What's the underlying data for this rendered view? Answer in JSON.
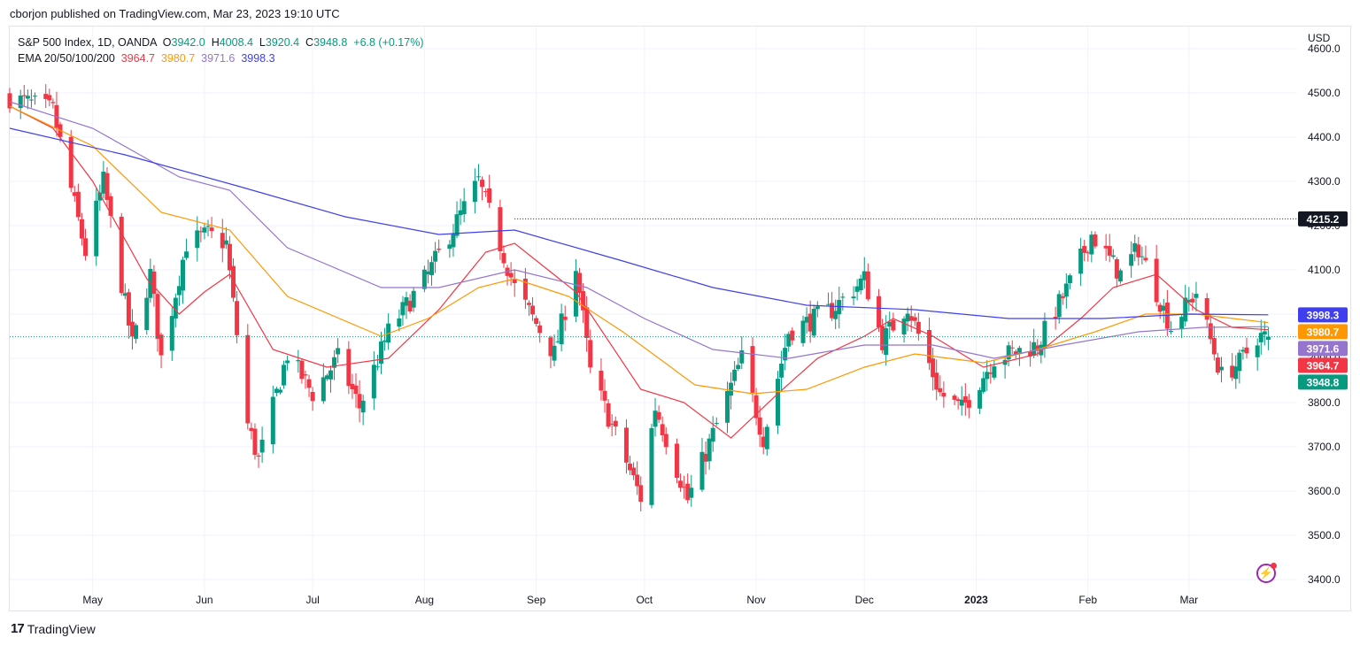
{
  "publish_line": "cborjon published on TradingView.com, Mar 23, 2023 19:10 UTC",
  "legend": {
    "symbol": "S&P 500 Index, 1D, OANDA",
    "o_label": "O",
    "o": "3942.0",
    "h_label": "H",
    "h": "4008.4",
    "l_label": "L",
    "l": "3920.4",
    "c_label": "C",
    "c": "3948.8",
    "change": "+6.8 (+0.17%)",
    "ema_label": "EMA 20/50/100/200",
    "ema20": "3964.7",
    "ema50": "3980.7",
    "ema100": "3971.6",
    "ema200": "3998.3"
  },
  "footer": {
    "brand": "TradingView",
    "logo": "17"
  },
  "colors": {
    "up": "#089981",
    "down": "#f23645",
    "ema20": "#f23645",
    "ema50": "#ff9800",
    "ema100": "#9575cd",
    "ema200": "#3f3fef",
    "grid": "#f0f3fa"
  },
  "chart_data": {
    "type": "candlestick",
    "title": "S&P 500 Index, 1D, OANDA",
    "currency": "USD",
    "ylim": [
      3350,
      4650
    ],
    "y_ticks": [
      3400,
      3500,
      3600,
      3700,
      3800,
      3900,
      4000,
      4100,
      4200,
      4300,
      4400,
      4500,
      4600
    ],
    "y_tick_labels": [
      "3400.0",
      "3500.0",
      "3600.0",
      "3700.0",
      "3800.0",
      "3900.0",
      "4000.0",
      "4100.0",
      "4200.0",
      "4300.0",
      "4400.0",
      "4500.0",
      "4600.0"
    ],
    "x_labels": [
      {
        "text": "May",
        "date": "2022-05-01"
      },
      {
        "text": "Jun",
        "date": "2022-06-01"
      },
      {
        "text": "Jul",
        "date": "2022-07-01"
      },
      {
        "text": "Aug",
        "date": "2022-08-01"
      },
      {
        "text": "Sep",
        "date": "2022-09-01"
      },
      {
        "text": "Oct",
        "date": "2022-10-01"
      },
      {
        "text": "Nov",
        "date": "2022-11-01"
      },
      {
        "text": "Dec",
        "date": "2022-12-01"
      },
      {
        "text": "2023",
        "date": "2023-01-01",
        "bold": true
      },
      {
        "text": "Feb",
        "date": "2023-02-01"
      },
      {
        "text": "Mar",
        "date": "2023-03-01"
      }
    ],
    "x_range": [
      "2022-04-08",
      "2023-03-31"
    ],
    "price_path": [
      [
        "2022-04-08",
        4490
      ],
      [
        "2022-04-20",
        4460
      ],
      [
        "2022-04-29",
        4140
      ],
      [
        "2022-05-04",
        4300
      ],
      [
        "2022-05-12",
        3930
      ],
      [
        "2022-05-17",
        4090
      ],
      [
        "2022-05-20",
        3900
      ],
      [
        "2022-05-27",
        4160
      ],
      [
        "2022-06-02",
        4180
      ],
      [
        "2022-06-07",
        4160
      ],
      [
        "2022-06-13",
        3750
      ],
      [
        "2022-06-16",
        3670
      ],
      [
        "2022-06-24",
        3910
      ],
      [
        "2022-07-01",
        3820
      ],
      [
        "2022-07-08",
        3900
      ],
      [
        "2022-07-14",
        3790
      ],
      [
        "2022-07-22",
        3960
      ],
      [
        "2022-08-02",
        4090
      ],
      [
        "2022-08-16",
        4300
      ],
      [
        "2022-08-19",
        4230
      ],
      [
        "2022-08-26",
        4060
      ],
      [
        "2022-09-06",
        3910
      ],
      [
        "2022-09-12",
        4110
      ],
      [
        "2022-09-16",
        3870
      ],
      [
        "2022-09-30",
        3585
      ],
      [
        "2022-10-04",
        3790
      ],
      [
        "2022-10-13",
        3580
      ],
      [
        "2022-10-21",
        3750
      ],
      [
        "2022-10-28",
        3900
      ],
      [
        "2022-11-03",
        3720
      ],
      [
        "2022-11-10",
        3960
      ],
      [
        "2022-11-22",
        4010
      ],
      [
        "2022-12-01",
        4080
      ],
      [
        "2022-12-06",
        3940
      ],
      [
        "2022-12-13",
        4020
      ],
      [
        "2022-12-22",
        3820
      ],
      [
        "2022-12-28",
        3785
      ],
      [
        "2023-01-06",
        3900
      ],
      [
        "2023-01-18",
        3930
      ],
      [
        "2023-01-27",
        4070
      ],
      [
        "2023-02-02",
        4180
      ],
      [
        "2023-02-10",
        4090
      ],
      [
        "2023-02-15",
        4150
      ],
      [
        "2023-02-24",
        3970
      ],
      [
        "2023-03-03",
        4050
      ],
      [
        "2023-03-10",
        3860
      ],
      [
        "2023-03-15",
        3890
      ],
      [
        "2023-03-20",
        3950
      ],
      [
        "2023-03-23",
        3948.8
      ]
    ],
    "ema_series": [
      {
        "name": "EMA 20",
        "color": "#f23645",
        "last": 3964.7,
        "points": [
          [
            "2022-04-08",
            4470
          ],
          [
            "2022-04-20",
            4420
          ],
          [
            "2022-05-01",
            4300
          ],
          [
            "2022-05-16",
            4080
          ],
          [
            "2022-05-25",
            4000
          ],
          [
            "2022-06-01",
            4050
          ],
          [
            "2022-06-08",
            4090
          ],
          [
            "2022-06-20",
            3920
          ],
          [
            "2022-07-05",
            3880
          ],
          [
            "2022-07-22",
            3900
          ],
          [
            "2022-08-05",
            4010
          ],
          [
            "2022-08-18",
            4140
          ],
          [
            "2022-08-26",
            4160
          ],
          [
            "2022-09-12",
            4050
          ],
          [
            "2022-09-30",
            3830
          ],
          [
            "2022-10-12",
            3800
          ],
          [
            "2022-10-25",
            3720
          ],
          [
            "2022-11-07",
            3820
          ],
          [
            "2022-11-18",
            3900
          ],
          [
            "2022-12-01",
            3950
          ],
          [
            "2022-12-09",
            3990
          ],
          [
            "2022-12-20",
            3950
          ],
          [
            "2023-01-03",
            3880
          ],
          [
            "2023-01-18",
            3910
          ],
          [
            "2023-01-30",
            3990
          ],
          [
            "2023-02-08",
            4060
          ],
          [
            "2023-02-20",
            4090
          ],
          [
            "2023-03-03",
            4010
          ],
          [
            "2023-03-13",
            3970
          ],
          [
            "2023-03-23",
            3964.7
          ]
        ]
      },
      {
        "name": "EMA 50",
        "color": "#ff9800",
        "last": 3980.7,
        "points": [
          [
            "2022-04-08",
            4470
          ],
          [
            "2022-05-01",
            4380
          ],
          [
            "2022-05-20",
            4230
          ],
          [
            "2022-06-08",
            4190
          ],
          [
            "2022-06-24",
            4040
          ],
          [
            "2022-07-20",
            3950
          ],
          [
            "2022-08-02",
            3990
          ],
          [
            "2022-08-16",
            4060
          ],
          [
            "2022-08-26",
            4080
          ],
          [
            "2022-09-10",
            4040
          ],
          [
            "2022-09-25",
            3960
          ],
          [
            "2022-10-15",
            3840
          ],
          [
            "2022-10-31",
            3820
          ],
          [
            "2022-11-15",
            3830
          ],
          [
            "2022-12-01",
            3880
          ],
          [
            "2022-12-15",
            3910
          ],
          [
            "2023-01-03",
            3890
          ],
          [
            "2023-01-18",
            3920
          ],
          [
            "2023-02-03",
            3960
          ],
          [
            "2023-02-17",
            4000
          ],
          [
            "2023-03-03",
            4000
          ],
          [
            "2023-03-23",
            3980.7
          ]
        ]
      },
      {
        "name": "EMA 100",
        "color": "#9575cd",
        "last": 3971.6,
        "points": [
          [
            "2022-04-08",
            4480
          ],
          [
            "2022-05-01",
            4420
          ],
          [
            "2022-05-25",
            4310
          ],
          [
            "2022-06-08",
            4280
          ],
          [
            "2022-06-24",
            4150
          ],
          [
            "2022-07-20",
            4060
          ],
          [
            "2022-08-05",
            4060
          ],
          [
            "2022-08-26",
            4100
          ],
          [
            "2022-09-15",
            4060
          ],
          [
            "2022-10-01",
            3990
          ],
          [
            "2022-10-20",
            3920
          ],
          [
            "2022-11-10",
            3900
          ],
          [
            "2022-12-01",
            3930
          ],
          [
            "2022-12-20",
            3930
          ],
          [
            "2023-01-06",
            3900
          ],
          [
            "2023-01-25",
            3930
          ],
          [
            "2023-02-15",
            3960
          ],
          [
            "2023-03-05",
            3970
          ],
          [
            "2023-03-23",
            3971.6
          ]
        ]
      },
      {
        "name": "EMA 200",
        "color": "#3f3fef",
        "last": 3998.3,
        "points": [
          [
            "2022-04-08",
            4420
          ],
          [
            "2022-05-10",
            4360
          ],
          [
            "2022-06-10",
            4290
          ],
          [
            "2022-07-10",
            4220
          ],
          [
            "2022-08-05",
            4180
          ],
          [
            "2022-08-26",
            4190
          ],
          [
            "2022-09-25",
            4120
          ],
          [
            "2022-10-20",
            4060
          ],
          [
            "2022-11-15",
            4020
          ],
          [
            "2022-12-15",
            4010
          ],
          [
            "2023-01-10",
            3990
          ],
          [
            "2023-02-05",
            3990
          ],
          [
            "2023-03-01",
            4000
          ],
          [
            "2023-03-23",
            3998.3
          ]
        ]
      }
    ],
    "horizontal_line": {
      "value": 4215.2,
      "label": "4215.2",
      "from_date": "2022-08-26",
      "style": "dotted"
    },
    "current_price_line": {
      "value": 3948.8,
      "style": "dotted"
    },
    "price_labels": [
      {
        "value": 3998.3,
        "text": "3998.3",
        "bg": "#3f3fef"
      },
      {
        "value": 3980.7,
        "text": "3980.7",
        "bg": "#ff9800"
      },
      {
        "value": 3971.6,
        "text": "3971.6",
        "bg": "#9575cd"
      },
      {
        "value": 3964.7,
        "text": "3964.7",
        "bg": "#f23645"
      },
      {
        "value": 3948.8,
        "text": "3948.8",
        "bg": "#089981"
      },
      {
        "value": 4215.2,
        "text": "4215.2",
        "bg": "#131722"
      }
    ],
    "grid": true
  }
}
